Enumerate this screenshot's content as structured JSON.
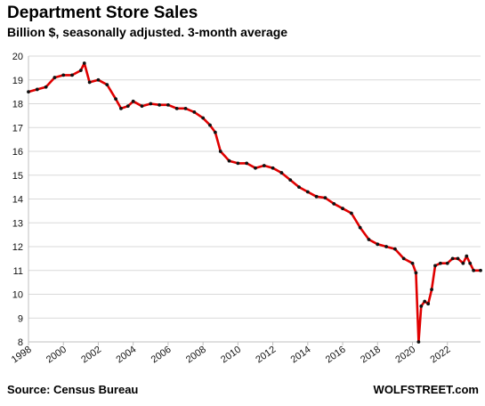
{
  "chart_data": {
    "type": "line",
    "title": "Department  Store Sales",
    "subtitle": "Billion $, seasonally adjusted. 3-month average",
    "xlabel": "",
    "ylabel": "",
    "xlim": [
      1998,
      2023.9
    ],
    "ylim": [
      8,
      20
    ],
    "x_ticks": [
      "1998",
      "2000",
      "2002",
      "2004",
      "2006",
      "2008",
      "2010",
      "2012",
      "2014",
      "2016",
      "2018",
      "2020",
      "2022"
    ],
    "y_ticks": [
      "8",
      "9",
      "10",
      "11",
      "12",
      "13",
      "14",
      "15",
      "16",
      "17",
      "18",
      "19",
      "20"
    ],
    "grid": "horizontal",
    "legend": "none",
    "colors": {
      "line": "#e00000",
      "markers": "#111111",
      "grid": "#d9d9d9",
      "axis": "#bfbfbf"
    },
    "series": [
      {
        "x": [
          1998.0,
          1998.5,
          1999.0,
          1999.5,
          2000.0,
          2000.5,
          2001.0,
          2001.2,
          2001.5,
          2002.0,
          2002.5,
          2003.0,
          2003.3,
          2003.7,
          2004.0,
          2004.5,
          2005.0,
          2005.5,
          2006.0,
          2006.5,
          2007.0,
          2007.5,
          2008.0,
          2008.4,
          2008.7,
          2009.0,
          2009.5,
          2010.0,
          2010.5,
          2011.0,
          2011.5,
          2012.0,
          2012.5,
          2013.0,
          2013.5,
          2014.0,
          2014.5,
          2015.0,
          2015.5,
          2016.0,
          2016.5,
          2017.0,
          2017.5,
          2018.0,
          2018.5,
          2019.0,
          2019.5,
          2020.0,
          2020.2,
          2020.35,
          2020.5,
          2020.7,
          2020.9,
          2021.1,
          2021.3,
          2021.6,
          2022.0,
          2022.3,
          2022.6,
          2022.9,
          2023.1,
          2023.3,
          2023.5,
          2023.9
        ],
        "y": [
          18.5,
          18.6,
          18.7,
          19.1,
          19.2,
          19.2,
          19.4,
          19.7,
          18.9,
          19.0,
          18.8,
          18.2,
          17.8,
          17.9,
          18.1,
          17.9,
          18.0,
          17.95,
          17.95,
          17.8,
          17.8,
          17.65,
          17.4,
          17.1,
          16.8,
          16.0,
          15.6,
          15.5,
          15.5,
          15.3,
          15.4,
          15.3,
          15.1,
          14.8,
          14.5,
          14.3,
          14.1,
          14.05,
          13.8,
          13.6,
          13.4,
          12.8,
          12.3,
          12.1,
          12.0,
          11.9,
          11.5,
          11.3,
          10.9,
          8.0,
          9.5,
          9.7,
          9.6,
          10.2,
          11.2,
          11.3,
          11.3,
          11.5,
          11.5,
          11.3,
          11.6,
          11.3,
          11.0,
          11.0
        ]
      }
    ]
  },
  "footer": {
    "source": "Source: Census Bureau",
    "brand": "WOLFSTREET.com"
  }
}
